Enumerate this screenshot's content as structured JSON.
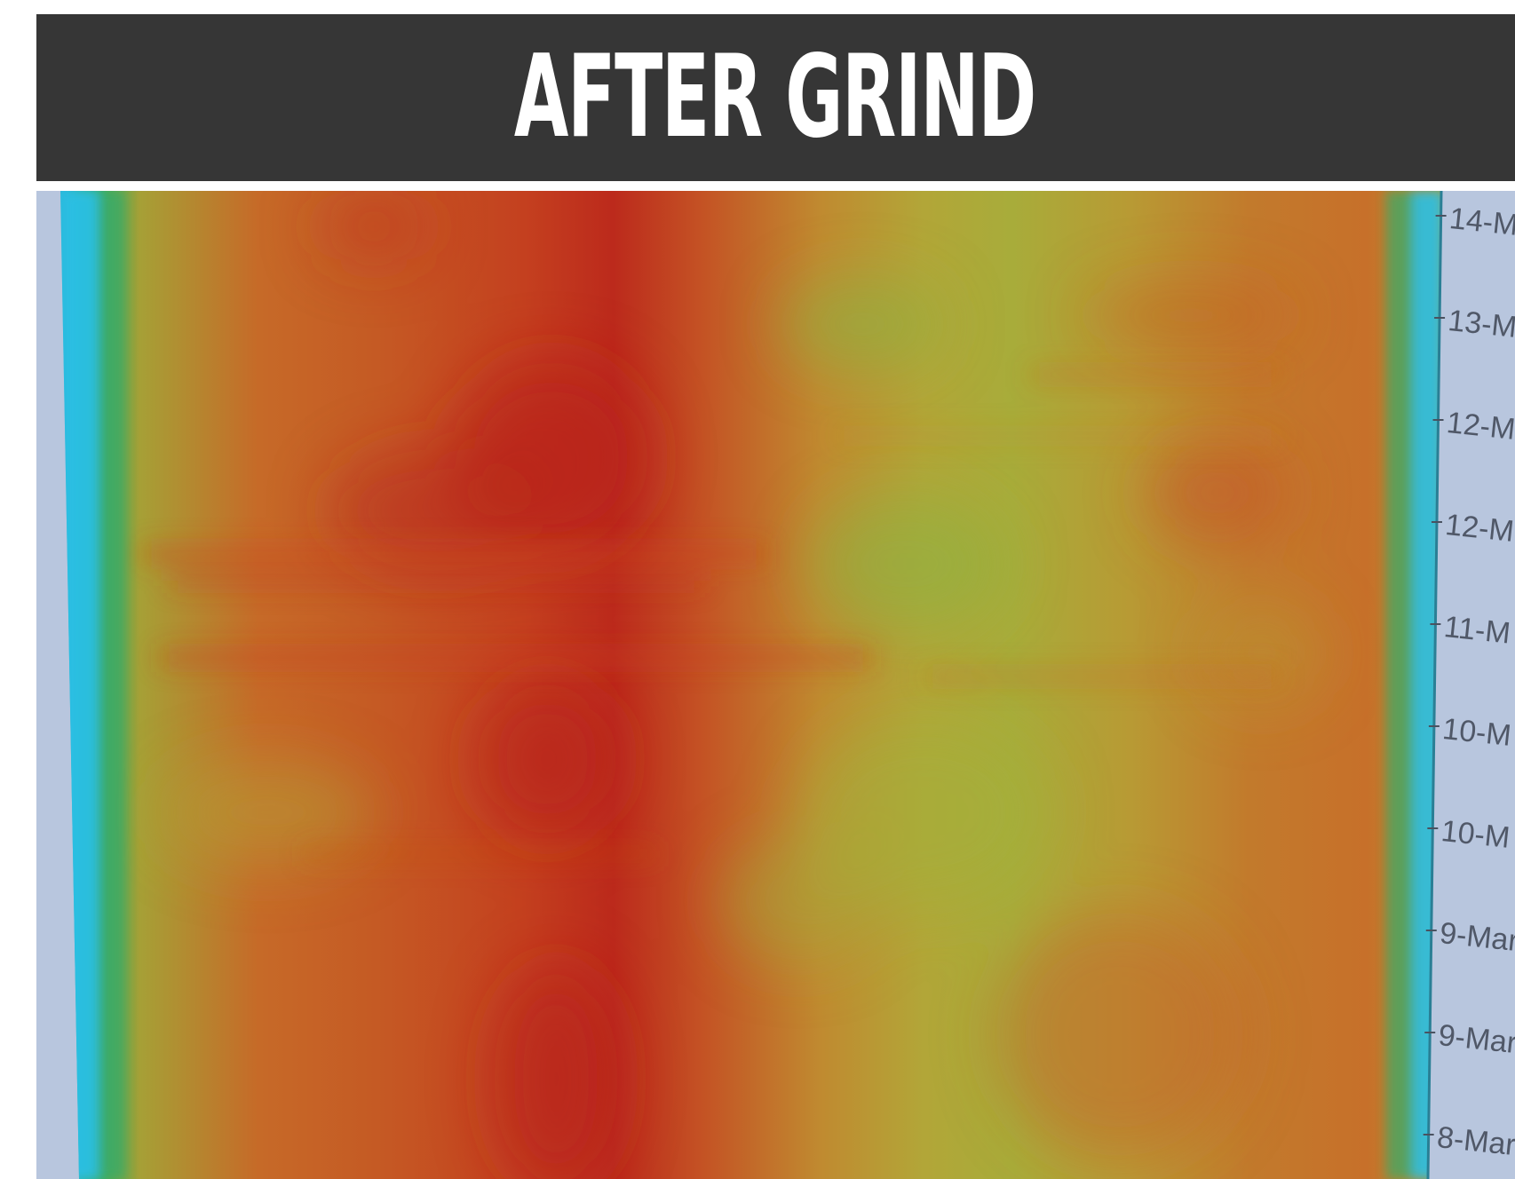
{
  "header": {
    "title": "AFTER GRIND"
  },
  "chart_data": {
    "type": "heatmap",
    "title": "AFTER GRIND",
    "y_tick_labels": [
      "14-M",
      "13-M",
      "12-M",
      "12-M",
      "11-M",
      "10-M",
      "10-M",
      "9-Mar",
      "9-Mar",
      "8-Mar",
      ""
    ],
    "colors": {
      "background": "#b8c6de",
      "edge_cyan": "#2cc0e6",
      "edge_green": "#3fae5a",
      "low": "#9cb63e",
      "mid": "#c8a030",
      "high": "#cf5a22",
      "peak": "#b8241c",
      "header_bg": "#363636",
      "header_text": "#ffffff"
    },
    "legend": "none",
    "grid": false
  }
}
